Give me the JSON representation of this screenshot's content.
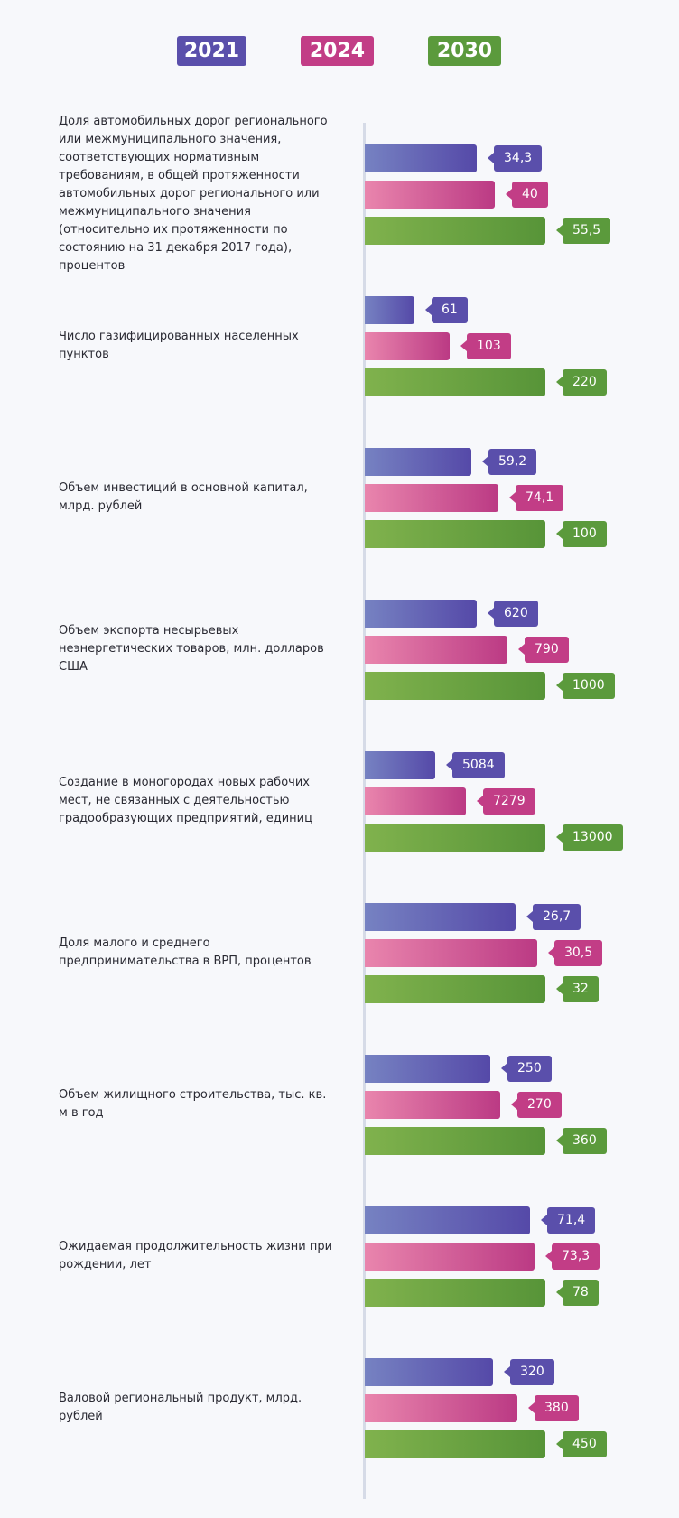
{
  "chart_data": {
    "type": "bar",
    "orientation": "horizontal",
    "legend_position": "top",
    "grid": false,
    "series": [
      {
        "name": "2021",
        "color": "#5a4fab",
        "values": [
          34.3,
          61,
          59.2,
          620,
          5084,
          26.7,
          250,
          71.4,
          320
        ]
      },
      {
        "name": "2024",
        "color": "#c23d86",
        "values": [
          40,
          103,
          74.1,
          790,
          7279,
          30.5,
          270,
          73.3,
          380
        ]
      },
      {
        "name": "2030",
        "color": "#5b9a3c",
        "values": [
          55.5,
          220,
          100,
          1000,
          13000,
          32,
          360,
          78,
          450
        ]
      }
    ],
    "value_labels": [
      [
        "34,3",
        "40",
        "55,5"
      ],
      [
        "61",
        "103",
        "220"
      ],
      [
        "59,2",
        "74,1",
        "100"
      ],
      [
        "620",
        "790",
        "1000"
      ],
      [
        "5084",
        "7279",
        "13000"
      ],
      [
        "26,7",
        "30,5",
        "32"
      ],
      [
        "250",
        "270",
        "360"
      ],
      [
        "71,4",
        "73,3",
        "78"
      ],
      [
        "320",
        "380",
        "450"
      ]
    ],
    "categories": [
      "Доля автомобильных дорог регионального или межмуниципального значения, соответствующих нормативным требованиям, в общей протяженности автомобильных дорог регионального или межмуниципального значения (относительно их протяженности по состоянию на 31 декабря 2017 года), процентов",
      "Число газифицированных населенных пунктов",
      "Объем инвестиций в основной капитал, млрд. рублей",
      "Объем экспорта несырьевых неэнергетических товаров, млн. долларов США",
      "Создание в моногородах новых рабочих мест, не связанных с деятельностью градообразующих предприятий, единиц",
      "Доля малого и среднего предпринимательства в ВРП, процентов",
      "Объем жилищного строительства, тыс. кв. м в год",
      "Ожидаемая продолжительность жизни при рождении, лет",
      "Валовой региональный продукт, млрд. рублей"
    ]
  }
}
